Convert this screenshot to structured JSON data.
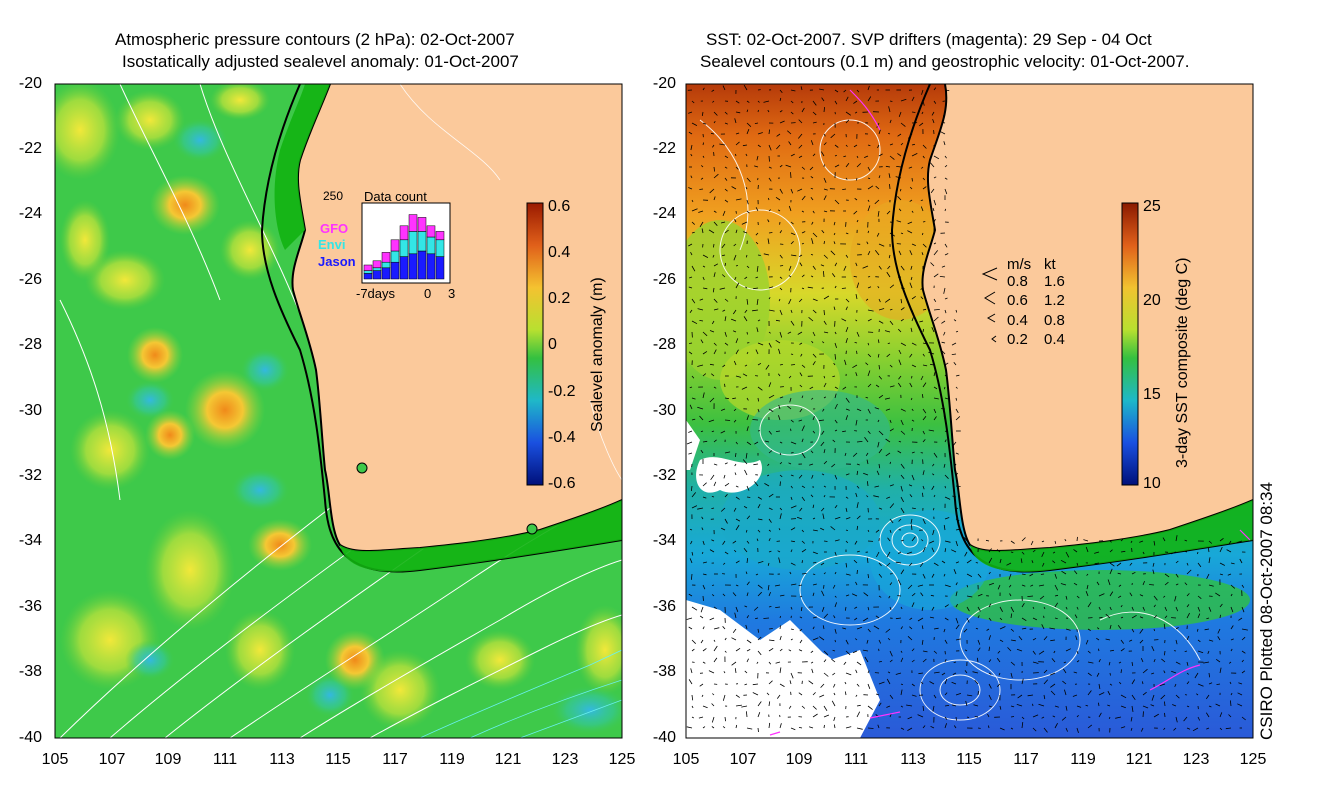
{
  "left_panel": {
    "title_line1": "Atmospheric pressure contours (2 hPa): 02-Oct-2007",
    "title_line2": "Isostatically adjusted sealevel anomaly: 01-Oct-2007",
    "colorbar": {
      "label": "Sealevel anomaly (m)",
      "ticks": [
        "0.6",
        "0.4",
        "0.2",
        "0",
        "-0.2",
        "-0.4",
        "-0.6"
      ]
    },
    "inset": {
      "max_label": "250",
      "title": "Data count",
      "series": [
        {
          "name": "GFO",
          "color": "#ff33ff"
        },
        {
          "name": "Envi",
          "color": "#33e6e6"
        },
        {
          "name": "Jason",
          "color": "#1a1aff"
        }
      ],
      "x_left": "-7days",
      "x_mid": "0",
      "x_right": "3",
      "day_counts": [
        {
          "jason": 20,
          "envi": 10,
          "gfo": 20
        },
        {
          "jason": 30,
          "envi": 10,
          "gfo": 25
        },
        {
          "jason": 40,
          "envi": 20,
          "gfo": 35
        },
        {
          "jason": 60,
          "envi": 40,
          "gfo": 40
        },
        {
          "jason": 80,
          "envi": 60,
          "gfo": 50
        },
        {
          "jason": 90,
          "envi": 80,
          "gfo": 60
        },
        {
          "jason": 100,
          "envi": 70,
          "gfo": 50
        },
        {
          "jason": 90,
          "envi": 60,
          "gfo": 40
        },
        {
          "jason": 80,
          "envi": 60,
          "gfo": 30
        }
      ]
    }
  },
  "right_panel": {
    "title_line1": "SST: 02-Oct-2007. SVP drifters (magenta): 29 Sep - 04 Oct",
    "title_line2": "Sealevel contours (0.1 m) and geostrophic velocity: 01-Oct-2007.",
    "colorbar": {
      "label": "3-day SST composite (deg C)",
      "ticks": [
        "25",
        "20",
        "15",
        "10"
      ]
    },
    "legend": {
      "header_ms": "m/s",
      "header_kt": "kt",
      "rows": [
        {
          "ms": "0.8",
          "kt": "1.6"
        },
        {
          "ms": "0.6",
          "kt": "1.2"
        },
        {
          "ms": "0.4",
          "kt": "0.8"
        },
        {
          "ms": "0.2",
          "kt": "0.4"
        }
      ]
    },
    "credit": "CSIRO Plotted 08-Oct-2007 08:34"
  },
  "axes": {
    "lat_ticks": [
      "-20",
      "-22",
      "-24",
      "-26",
      "-28",
      "-30",
      "-32",
      "-34",
      "-36",
      "-38",
      "-40"
    ],
    "lon_ticks": [
      "105",
      "107",
      "109",
      "111",
      "113",
      "115",
      "117",
      "119",
      "121",
      "123",
      "125"
    ],
    "lat_range": [
      -40,
      -20
    ],
    "lon_range": [
      105,
      125
    ]
  },
  "colors": {
    "land": "#fbc99b",
    "coast": "#000000",
    "ocean_green": "#3ec94a",
    "shelf_green": "#12b312"
  }
}
